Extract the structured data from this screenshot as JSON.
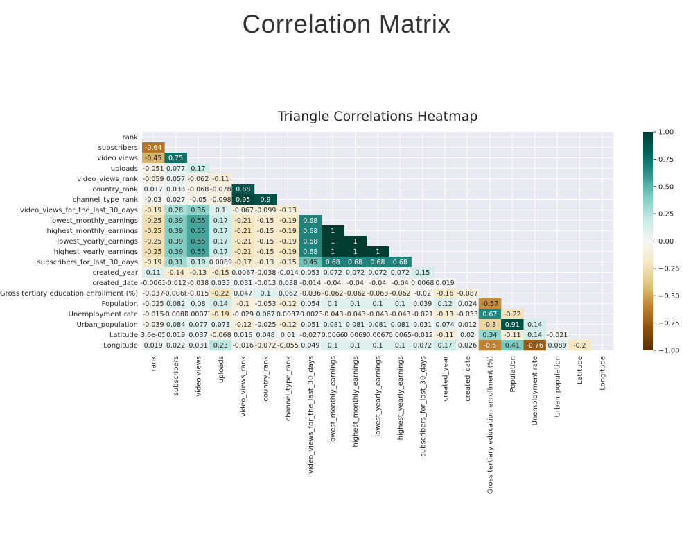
{
  "page_title": "Correlation Matrix",
  "chart_data": {
    "type": "heatmap",
    "title": "Triangle Correlations Heatmap",
    "variables": [
      "rank",
      "subscribers",
      "video views",
      "uploads",
      "video_views_rank",
      "country_rank",
      "channel_type_rank",
      "video_views_for_the_last_30_days",
      "lowest_monthly_earnings",
      "highest_monthly_earnings",
      "lowest_yearly_earnings",
      "highest_yearly_earnings",
      "subscribers_for_last_30_days",
      "created_year",
      "created_date",
      "Gross tertiary education enrollment (%)",
      "Population",
      "Unemployment rate",
      "Urban_population",
      "Latitude",
      "Longitude"
    ],
    "matrix_lower": [
      [],
      [
        -0.64
      ],
      [
        -0.45,
        0.75
      ],
      [
        -0.051,
        0.077,
        0.17
      ],
      [
        -0.059,
        0.057,
        -0.062,
        -0.11
      ],
      [
        0.017,
        0.033,
        -0.068,
        -0.078,
        0.88
      ],
      [
        -0.03,
        0.027,
        -0.05,
        -0.098,
        0.95,
        0.9
      ],
      [
        -0.19,
        0.28,
        0.36,
        0.1,
        -0.067,
        -0.099,
        -0.13
      ],
      [
        -0.25,
        0.39,
        0.55,
        0.17,
        -0.21,
        -0.15,
        -0.19,
        0.68
      ],
      [
        -0.25,
        0.39,
        0.55,
        0.17,
        -0.21,
        -0.15,
        -0.19,
        0.68,
        1
      ],
      [
        -0.25,
        0.39,
        0.55,
        0.17,
        -0.21,
        -0.15,
        -0.19,
        0.68,
        1,
        1
      ],
      [
        -0.25,
        0.39,
        0.55,
        0.17,
        -0.21,
        -0.15,
        -0.19,
        0.68,
        1,
        1,
        1
      ],
      [
        -0.19,
        0.31,
        0.19,
        0.0089,
        -0.17,
        -0.13,
        -0.15,
        0.45,
        0.68,
        0.68,
        0.68,
        0.68
      ],
      [
        0.11,
        -0.14,
        -0.13,
        -0.15,
        0.0067,
        -0.038,
        -0.014,
        0.053,
        0.072,
        0.072,
        0.072,
        0.072,
        0.15
      ],
      [
        -0.0063,
        -0.012,
        -0.038,
        0.035,
        0.031,
        -0.013,
        0.038,
        -0.014,
        -0.04,
        -0.04,
        -0.04,
        -0.04,
        0.0068,
        0.019
      ],
      [
        -0.037,
        -0.0068,
        -0.015,
        -0.22,
        0.047,
        0.1,
        0.062,
        -0.036,
        -0.062,
        -0.062,
        -0.063,
        -0.062,
        -0.02,
        -0.16,
        -0.087
      ],
      [
        -0.025,
        0.082,
        0.08,
        0.14,
        -0.1,
        -0.053,
        -0.12,
        0.054,
        0.1,
        0.1,
        0.1,
        0.1,
        0.039,
        0.12,
        0.024,
        -0.57
      ],
      [
        -0.015,
        -0.0083,
        0.00073,
        -0.19,
        -0.029,
        0.067,
        0.0037,
        -0.0023,
        -0.043,
        -0.043,
        -0.043,
        -0.043,
        -0.021,
        -0.13,
        -0.033,
        0.67,
        -0.22
      ],
      [
        -0.039,
        0.084,
        0.077,
        0.073,
        -0.12,
        -0.025,
        -0.12,
        0.051,
        0.081,
        0.081,
        0.081,
        0.081,
        0.031,
        0.074,
        0.012,
        -0.3,
        0.91,
        0.14
      ],
      [
        3.6e-05,
        0.019,
        0.037,
        -0.068,
        0.016,
        0.048,
        0.01,
        -0.027,
        0.0066,
        0.0069,
        0.0067,
        0.0065,
        -0.012,
        -0.11,
        0.02,
        0.34,
        -0.11,
        0.14,
        -0.021
      ],
      [
        0.019,
        0.022,
        0.031,
        0.23,
        -0.016,
        -0.072,
        -0.055,
        0.049,
        0.1,
        0.1,
        0.1,
        0.1,
        0.072,
        0.17,
        0.026,
        -0.6,
        0.41,
        -0.76,
        0.089,
        -0.2
      ]
    ],
    "cell_labels_lower": [
      [],
      [
        "-0.64"
      ],
      [
        "-0.45",
        "0.75"
      ],
      [
        "-0.051",
        "0.077",
        "0.17"
      ],
      [
        "-0.059",
        "0.057",
        "-0.062",
        "-0.11"
      ],
      [
        "0.017",
        "0.033",
        "-0.068",
        "-0.078",
        "0.88"
      ],
      [
        "-0.03",
        "0.027",
        "-0.05",
        "-0.098",
        "0.95",
        "0.9"
      ],
      [
        "-0.19",
        "0.28",
        "0.36",
        "0.1",
        "-0.067",
        "-0.099",
        "-0.13"
      ],
      [
        "-0.25",
        "0.39",
        "0.55",
        "0.17",
        "-0.21",
        "-0.15",
        "-0.19",
        "0.68"
      ],
      [
        "-0.25",
        "0.39",
        "0.55",
        "0.17",
        "-0.21",
        "-0.15",
        "-0.19",
        "0.68",
        "1"
      ],
      [
        "-0.25",
        "0.39",
        "0.55",
        "0.17",
        "-0.21",
        "-0.15",
        "-0.19",
        "0.68",
        "1",
        "1"
      ],
      [
        "-0.25",
        "0.39",
        "0.55",
        "0.17",
        "-0.21",
        "-0.15",
        "-0.19",
        "0.68",
        "1",
        "1",
        "1"
      ],
      [
        "-0.19",
        "0.31",
        "0.19",
        "0.0089",
        "-0.17",
        "-0.13",
        "-0.15",
        "0.45",
        "0.68",
        "0.68",
        "0.68",
        "0.68"
      ],
      [
        "0.11",
        "-0.14",
        "-0.13",
        "-0.15",
        "0.0067",
        "-0.038",
        "-0.014",
        "0.053",
        "0.072",
        "0.072",
        "0.072",
        "0.072",
        "0.15"
      ],
      [
        "-0.0063",
        "-0.012",
        "-0.038",
        "0.035",
        "0.031",
        "-0.013",
        "0.038",
        "-0.014",
        "-0.04",
        "-0.04",
        "-0.04",
        "-0.04",
        "0.0068",
        "0.019"
      ],
      [
        "-0.037",
        "-0.0068",
        "-0.015",
        "-0.22",
        "0.047",
        "0.1",
        "0.062",
        "-0.036",
        "-0.062",
        "-0.062",
        "-0.063",
        "-0.062",
        "-0.02",
        "-0.16",
        "-0.087"
      ],
      [
        "-0.025",
        "0.082",
        "0.08",
        "0.14",
        "-0.1",
        "-0.053",
        "-0.12",
        "0.054",
        "0.1",
        "0.1",
        "0.1",
        "0.1",
        "0.039",
        "0.12",
        "0.024",
        "-0.57"
      ],
      [
        "-0.015",
        "-0.0083",
        "0.00073",
        "-0.19",
        "-0.029",
        "0.067",
        "0.0037",
        "-0.0023",
        "-0.043",
        "-0.043",
        "-0.043",
        "-0.043",
        "-0.021",
        "-0.13",
        "-0.033",
        "0.67",
        "-0.22"
      ],
      [
        "-0.039",
        "0.084",
        "0.077",
        "0.073",
        "-0.12",
        "-0.025",
        "-0.12",
        "0.051",
        "0.081",
        "0.081",
        "0.081",
        "0.081",
        "0.031",
        "0.074",
        "0.012",
        "-0.3",
        "0.91",
        "0.14"
      ],
      [
        "3.6e-05",
        "0.019",
        "0.037",
        "-0.068",
        "0.016",
        "0.048",
        "0.01",
        "-0.027",
        "0.0066",
        "0.0069",
        "0.0067",
        "0.0065",
        "-0.012",
        "-0.11",
        "0.02",
        "0.34",
        "-0.11",
        "0.14",
        "-0.021"
      ],
      [
        "0.019",
        "0.022",
        "0.031",
        "0.23",
        "-0.016",
        "-0.072",
        "-0.055",
        "0.049",
        "0.1",
        "0.1",
        "0.1",
        "0.1",
        "0.072",
        "0.17",
        "0.026",
        "-0.6",
        "0.41",
        "-0.76",
        "0.089",
        "-0.2"
      ]
    ],
    "colormap": "BrBG",
    "vmin": -1,
    "vmax": 1,
    "colorbar_ticks": [
      "1.00",
      "0.75",
      "0.50",
      "0.25",
      "0.00",
      "−0.25",
      "−0.50",
      "−0.75",
      "−1.00"
    ],
    "colorbar_values": [
      1,
      0.75,
      0.5,
      0.25,
      0,
      -0.25,
      -0.5,
      -0.75,
      -1
    ],
    "colors": {
      "background": "#eaeaf2",
      "grid": "#ffffff",
      "text_dark": "#262626",
      "text_light": "#ffffff",
      "title": "#262626"
    }
  }
}
